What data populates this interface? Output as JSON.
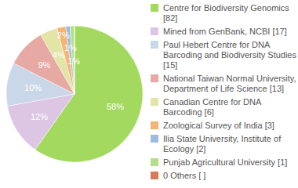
{
  "chart_data": {
    "type": "pie",
    "categories": [
      "Centre for Biodiversity Genomics [82]",
      "Mined from GenBank, NCBI [17]",
      "Paul Hebert Centre for DNA Barcoding and Biodiversity Studies [15]",
      "National Taiwan Normal University, Department of Life Science [13]",
      "Canadian Centre for DNA Barcoding [6]",
      "Zoological Survey of India [3]",
      "Ilia State University, Institute of Ecology [2]",
      "Punjab Agricultural University [1]",
      "0 Others [ ]"
    ],
    "values": [
      58,
      12,
      10,
      9,
      4,
      2,
      1,
      1,
      0
    ],
    "value_labels": [
      "58%",
      "12%",
      "10%",
      "9%",
      "4%",
      "2%",
      "1%",
      "1%",
      null
    ],
    "colors": [
      "#a3d95f",
      "#dcc6e4",
      "#c9d7e8",
      "#e6a9a3",
      "#e2e5a5",
      "#f4b474",
      "#9dbbe3",
      "#b5e08b",
      "#d67b5a"
    ],
    "data_labels": true,
    "legend": "right"
  }
}
